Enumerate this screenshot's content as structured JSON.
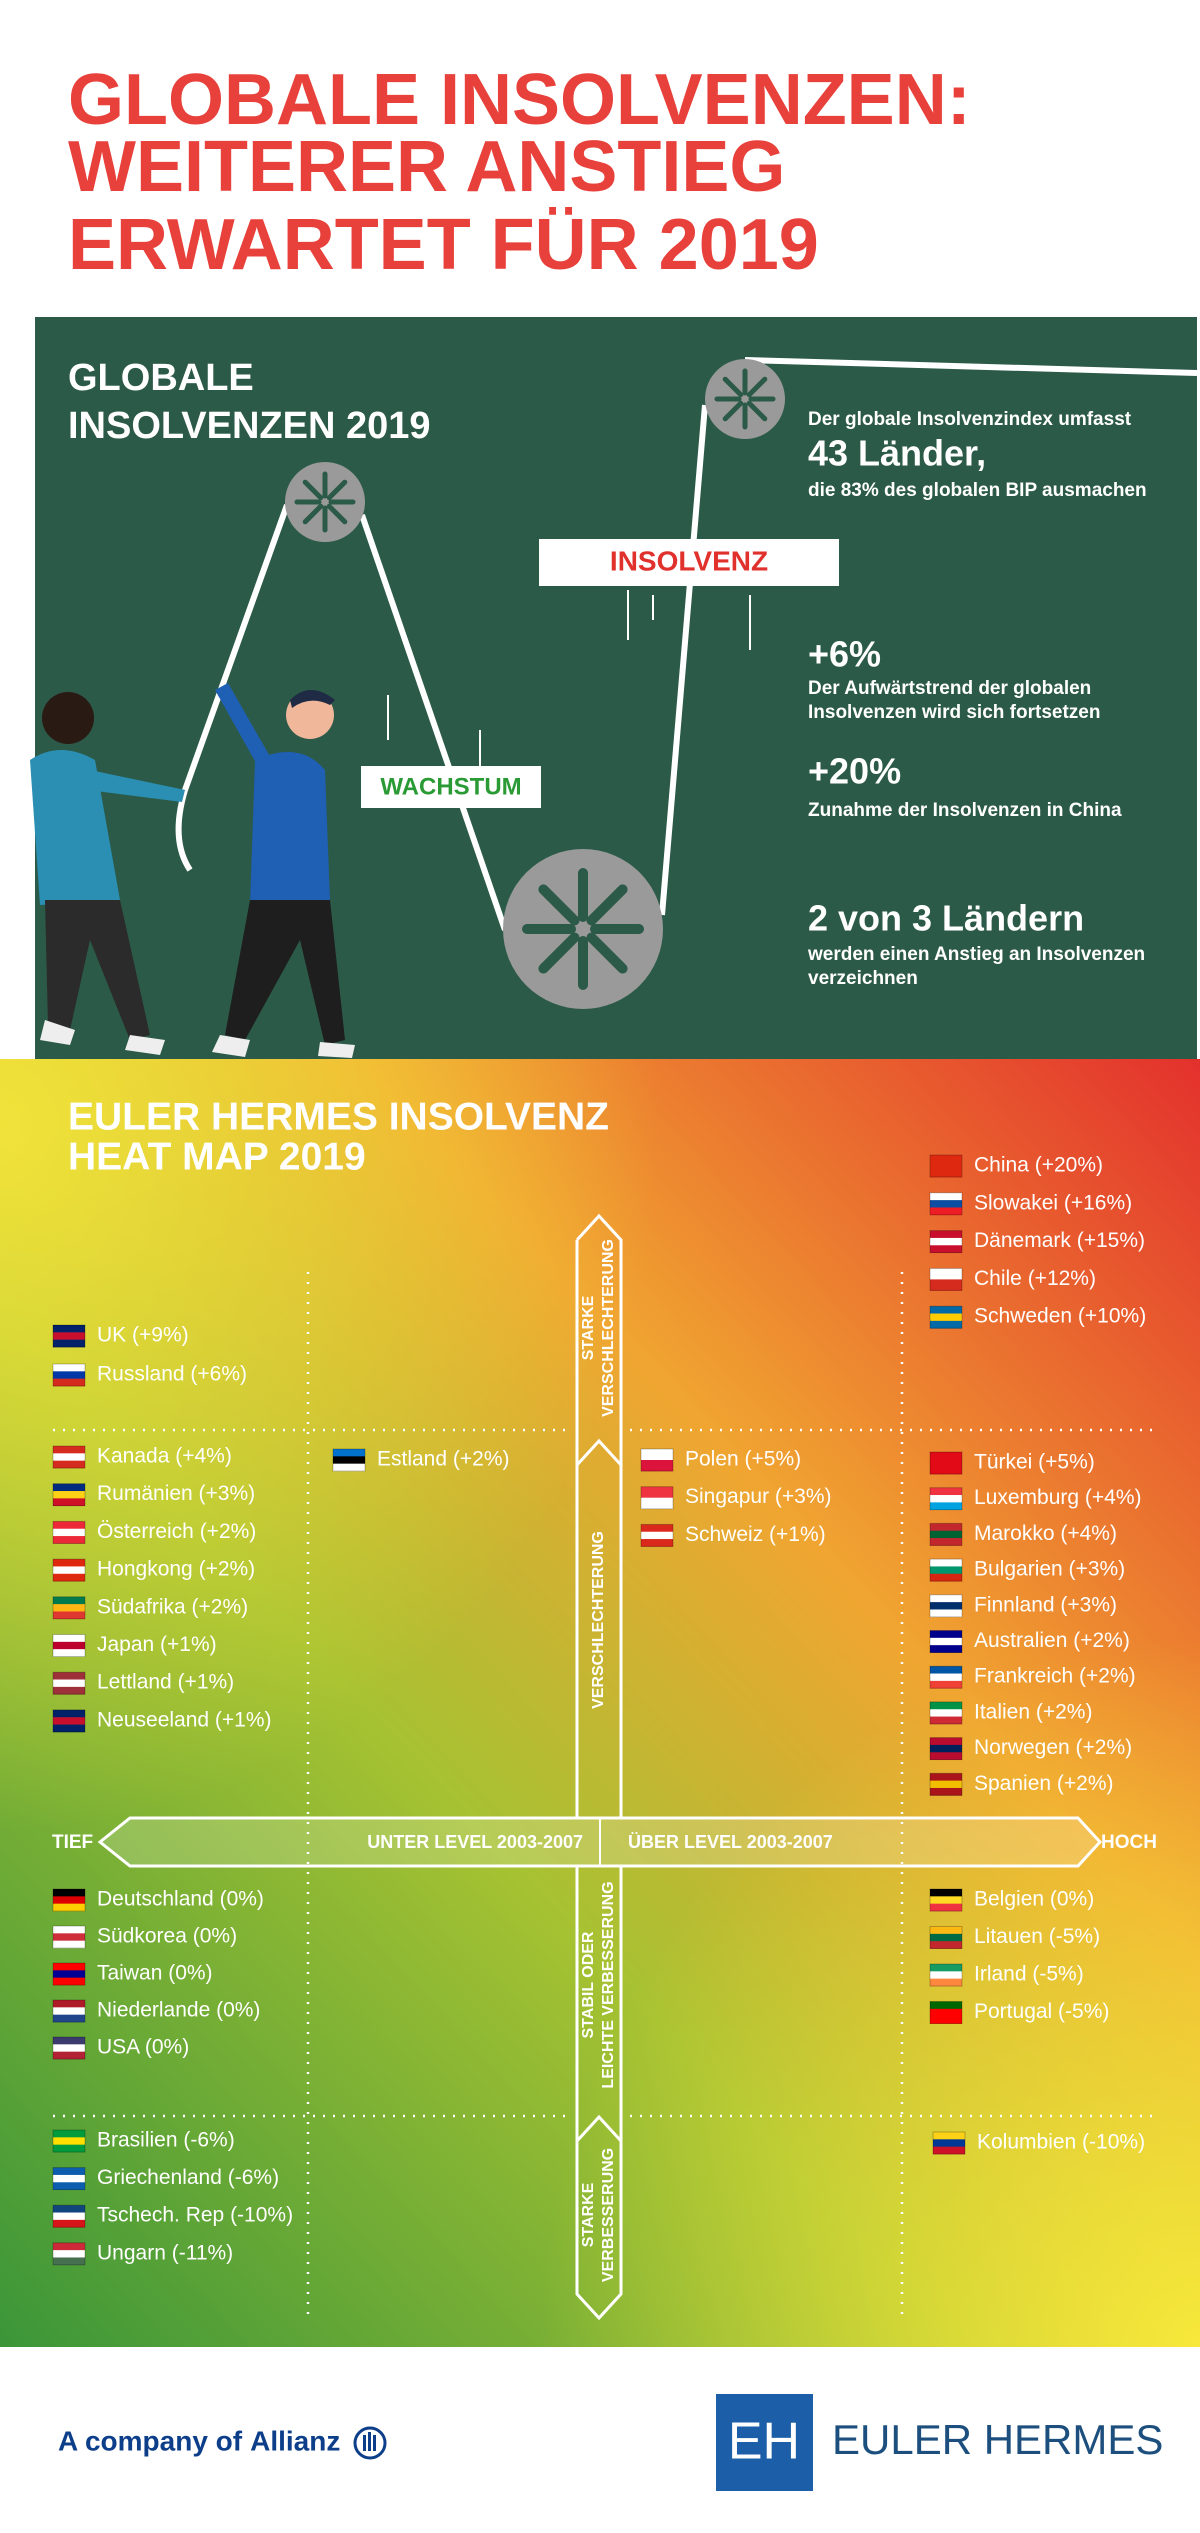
{
  "header": {
    "title_lines": [
      "GLOBALE  INSOLVENZEN:",
      "WEITERER ANSTIEG",
      "ERWARTET FÜR 2019"
    ]
  },
  "panel": {
    "title_lines": [
      "GLOBALE",
      "INSOLVENZEN 2019"
    ],
    "labels": {
      "insolvency": "INSOLVENZ",
      "growth": "WACHSTUM"
    },
    "facts": [
      {
        "intro": "Der globale Insolvenzindex umfasst",
        "headline": "43 Länder,",
        "lines": [
          "die 83% des globalen BIP ausmachen"
        ]
      },
      {
        "headline": "+6%",
        "lines": [
          "Der Aufwärtstrend der globalen",
          "Insolvenzen wird sich fortsetzen"
        ]
      },
      {
        "headline": "+20%",
        "lines": [
          "Zunahme der Insolvenzen in China"
        ]
      },
      {
        "headline": "2 von 3 Ländern",
        "lines": [
          "werden einen Anstieg an Insolvenzen",
          "verzeichnen"
        ]
      }
    ]
  },
  "heatmap": {
    "title_lines": [
      "EULER HERMES INSOLVENZ",
      "HEAT MAP 2019"
    ],
    "axis": {
      "low": "TIEF",
      "high": "HOCH",
      "below": "UNTER LEVEL 2003-2007",
      "above": "ÜBER LEVEL 2003-2007",
      "strong_worse": [
        "STARKE",
        "VERSCHLECHTERUNG"
      ],
      "worse": [
        "VERSCHLECHTERUNG"
      ],
      "stable": [
        "STABIL ODER",
        "LEICHTE VERBESSERUNG"
      ],
      "strong_better": [
        "STARKE",
        "VERBESSERUNG"
      ]
    },
    "groups": [
      {
        "countries": [
          "China (+20%)",
          "Slowakei (+16%)",
          "Dänemark (+15%)",
          "Chile (+12%)",
          "Schweden (+10%)"
        ]
      },
      {
        "countries": [
          "UK (+9%)",
          "Russland (+6%)"
        ]
      },
      {
        "countries": [
          "Kanada (+4%)",
          "Rumänien (+3%)",
          "Österreich (+2%)",
          "Hongkong (+2%)",
          "Südafrika (+2%)",
          "Japan (+1%)",
          "Lettland (+1%)",
          "Neuseeland (+1%)"
        ]
      },
      {
        "countries": [
          "Estland (+2%)"
        ]
      },
      {
        "countries": [
          "Polen (+5%)",
          "Singapur (+3%)",
          "Schweiz (+1%)"
        ]
      },
      {
        "countries": [
          "Türkei (+5%)",
          "Luxemburg (+4%)",
          "Marokko (+4%)",
          "Bulgarien (+3%)",
          "Finnland (+3%)",
          "Australien (+2%)",
          "Frankreich (+2%)",
          "Italien (+2%)",
          "Norwegen (+2%)",
          "Spanien (+2%)"
        ]
      },
      {
        "countries": [
          "Deutschland (0%)",
          "Südkorea (0%)",
          "Taiwan (0%)",
          "Niederlande (0%)",
          "USA (0%)"
        ]
      },
      {
        "countries": [
          "Belgien (0%)",
          "Litauen (-5%)",
          "Irland (-5%)",
          "Portugal (-5%)"
        ]
      },
      {
        "countries": [
          "Brasilien (-6%)",
          "Griechenland (-6%)",
          "Tschech. Rep (-10%)",
          "Ungarn (-11%)"
        ]
      },
      {
        "countries": [
          "Kolumbien (-10%)"
        ]
      }
    ]
  },
  "footer": {
    "company_prefix": "A company of",
    "company_name": "Allianz",
    "logo_initials": "EH",
    "brand": "EULER HERMES"
  }
}
